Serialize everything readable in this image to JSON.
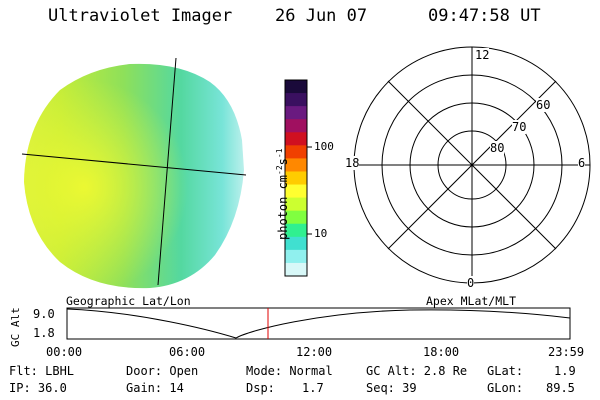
{
  "header": {
    "instrument": "Ultraviolet Imager",
    "date": "26 Jun 07",
    "time": "09:47:58 UT"
  },
  "colorbar": {
    "label": "photon cm",
    "label_sup1": "-2",
    "label_mid": "s",
    "label_sup2": "-1",
    "ticks": [
      "100",
      "10"
    ],
    "colors": [
      "#1a0a3a",
      "#3a1060",
      "#6a1a80",
      "#a01060",
      "#d01020",
      "#f04000",
      "#ff8800",
      "#ffcc00",
      "#ffff30",
      "#ccff30",
      "#80ff40",
      "#30f090",
      "#40e0d0",
      "#90f0ee",
      "#d8f8f8"
    ]
  },
  "polar": {
    "mlt_labels": {
      "top": "12",
      "right": "6",
      "bottom": "0",
      "left": "18"
    },
    "lat_labels": [
      "60",
      "70",
      "80"
    ]
  },
  "timeline": {
    "left_label": "Geographic Lat/Lon",
    "right_label": "Apex MLat/MLT",
    "axis_title": "GC Alt",
    "y_ticks": [
      "9.0",
      "1.8"
    ],
    "x_ticks": [
      "00:00",
      "06:00",
      "12:00",
      "18:00",
      "23:59"
    ]
  },
  "info": {
    "flt": "Flt: LBHL",
    "ip": "IP: 36.0",
    "door": "Door: Open",
    "gain": "Gain: 14",
    "mode": "Mode: Normal",
    "dsp_label": "Dsp:",
    "dsp_value": "1.7",
    "gcalt": "GC Alt: 2.8 Re",
    "seq": "Seq: 39",
    "glat_label": "GLat:",
    "glat_value": "1.9",
    "glon_label": "GLon:",
    "glon_value": "89.5"
  }
}
